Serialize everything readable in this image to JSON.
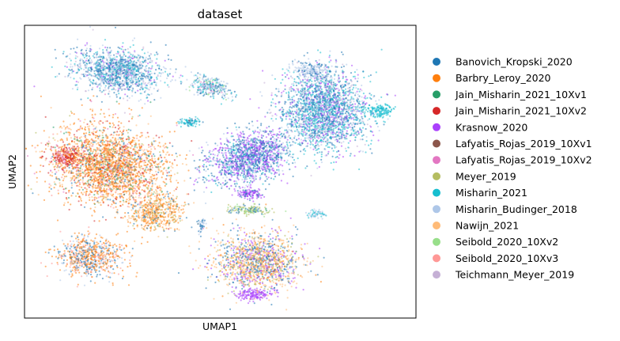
{
  "chart_data": {
    "type": "scatter",
    "title": "dataset",
    "xlabel": "UMAP1",
    "ylabel": "UMAP2",
    "grid": false,
    "ticks_shown": false,
    "legend_placement": "right, outside plot",
    "series": [
      {
        "name": "Banovich_Kropski_2020",
        "color": "#1f77b4"
      },
      {
        "name": "Barbry_Leroy_2020",
        "color": "#ff7f0e"
      },
      {
        "name": "Jain_Misharin_2021_10Xv1",
        "color": "#279e68"
      },
      {
        "name": "Jain_Misharin_2021_10Xv2",
        "color": "#d62728"
      },
      {
        "name": "Krasnow_2020",
        "color": "#aa40fc"
      },
      {
        "name": "Lafyatis_Rojas_2019_10Xv1",
        "color": "#8c564b"
      },
      {
        "name": "Lafyatis_Rojas_2019_10Xv2",
        "color": "#e377c2"
      },
      {
        "name": "Meyer_2019",
        "color": "#b5bd61"
      },
      {
        "name": "Misharin_2021",
        "color": "#17becf"
      },
      {
        "name": "Misharin_Budinger_2018",
        "color": "#aec7e8"
      },
      {
        "name": "Nawijn_2021",
        "color": "#ffbb78"
      },
      {
        "name": "Seibold_2020_10Xv2",
        "color": "#98df8a"
      },
      {
        "name": "Seibold_2020_10Xv3",
        "color": "#ff9896"
      },
      {
        "name": "Teichmann_Meyer_2019",
        "color": "#c5b0d5"
      }
    ]
  }
}
